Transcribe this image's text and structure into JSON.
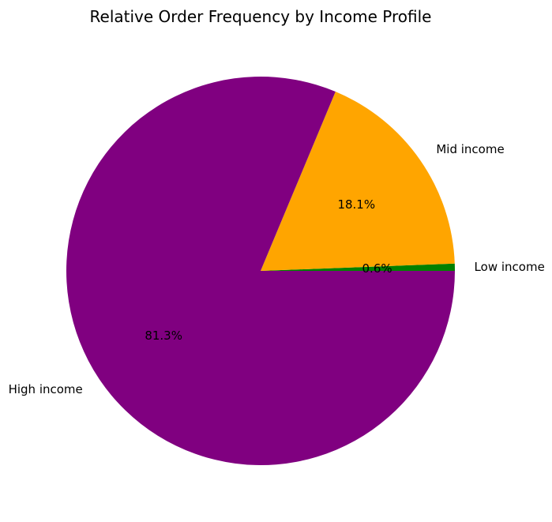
{
  "chart_data": {
    "type": "pie",
    "title": "Relative Order Frequency by Income Profile",
    "categories": [
      "Low income",
      "Mid income",
      "High income"
    ],
    "values": [
      0.6,
      18.1,
      81.3
    ],
    "percent_labels": [
      "0.6%",
      "18.1%",
      "81.3%"
    ],
    "colors": [
      "#008000",
      "#ffa500",
      "#800080"
    ],
    "start_angle_deg": 0,
    "direction": "counterclockwise"
  }
}
